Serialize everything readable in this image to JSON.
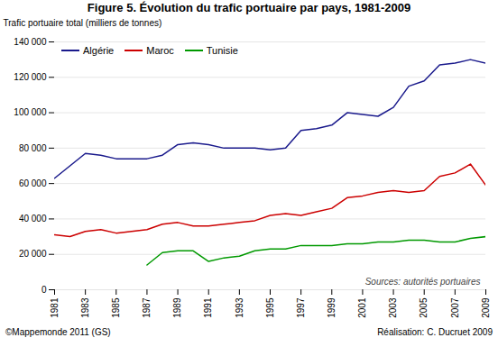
{
  "chart_data": {
    "type": "line",
    "title": "Figure 5. Évolution du trafic portuaire par pays, 1981-2009",
    "y_label": "Trafic portuaire total (milliers de tonnes)",
    "annotations": [
      "Sources: autorités portuaires",
      "©Mappemonde 2011 (GS)",
      "Réalisation: C. Ducruet 2009"
    ],
    "x": [
      1981,
      1982,
      1983,
      1984,
      1985,
      1986,
      1987,
      1988,
      1989,
      1990,
      1991,
      1992,
      1993,
      1994,
      1995,
      1996,
      1997,
      1998,
      1999,
      2000,
      2001,
      2002,
      2003,
      2004,
      2005,
      2006,
      2007,
      2008,
      2009
    ],
    "series": [
      {
        "name": "Algérie",
        "color": "#1A1A8C",
        "values": [
          63000,
          70000,
          77000,
          76000,
          74000,
          74000,
          74000,
          76000,
          82000,
          83000,
          82000,
          80000,
          80000,
          80000,
          79000,
          80000,
          90000,
          91000,
          93000,
          100000,
          99000,
          98000,
          103000,
          115000,
          118000,
          127000,
          128000,
          130000,
          128000
        ]
      },
      {
        "name": "Maroc",
        "color": "#CC0000",
        "values": [
          31000,
          30000,
          33000,
          34000,
          32000,
          33000,
          34000,
          37000,
          38000,
          36000,
          36000,
          37000,
          38000,
          39000,
          42000,
          43000,
          42000,
          44000,
          46000,
          52000,
          53000,
          55000,
          56000,
          55000,
          56000,
          64000,
          66000,
          71000,
          59000
        ]
      },
      {
        "name": "Tunisie",
        "color": "#009900",
        "values": [
          null,
          null,
          null,
          null,
          null,
          null,
          14000,
          21000,
          22000,
          22000,
          16000,
          18000,
          19000,
          22000,
          23000,
          23000,
          25000,
          25000,
          25000,
          26000,
          26000,
          27000,
          27000,
          28000,
          28000,
          27000,
          27000,
          29000,
          30000
        ]
      }
    ],
    "xlim": [
      1981,
      2009
    ],
    "xticks": [
      1981,
      1983,
      1985,
      1987,
      1989,
      1991,
      1993,
      1995,
      1997,
      1999,
      2001,
      2003,
      2005,
      2007,
      2009
    ],
    "ylim": [
      0,
      140000
    ],
    "yticks": [
      0,
      {
        "value": 20000,
        "label": "20 000"
      },
      {
        "value": 40000,
        "label": "40 000"
      },
      {
        "value": 60000,
        "label": "60 000"
      },
      {
        "value": 80000,
        "label": "80 000"
      },
      {
        "value": 100000,
        "label": "100 000"
      },
      {
        "value": 120000,
        "label": "120 000"
      },
      {
        "value": 140000,
        "label": "140 000"
      }
    ],
    "grid": true,
    "legend": "top-left"
  }
}
